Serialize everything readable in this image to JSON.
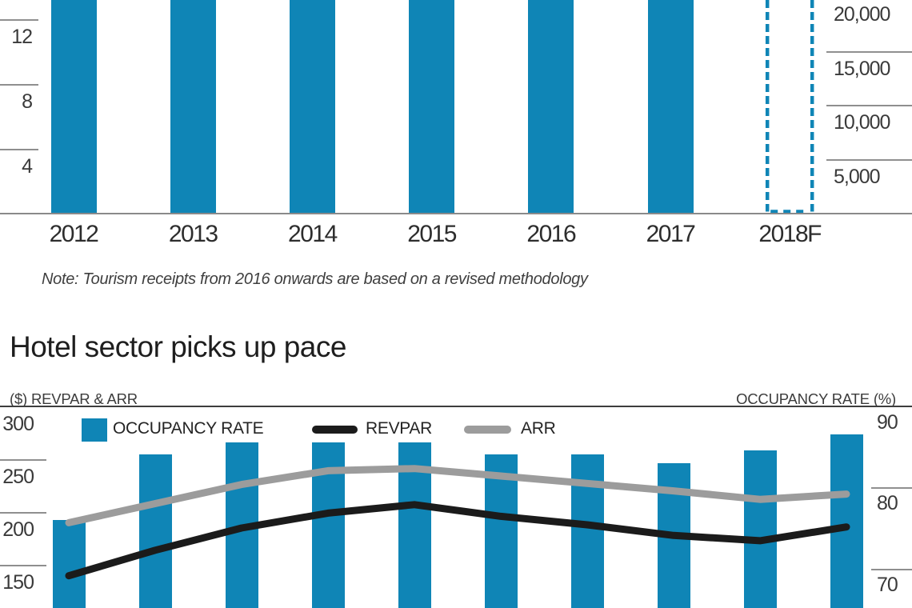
{
  "colors": {
    "bar_blue": "#0f85b6",
    "revpar_line": "#1b1b1b",
    "arr_line": "#9c9c9c",
    "axis_gray": "#8f8f8f",
    "divider_dark": "#3d3d3d"
  },
  "top_chart": {
    "note": "Note: Tourism receipts from 2016 onwards are based on a revised methodology"
  },
  "bottom_chart": {
    "title": "Hotel sector picks up pace",
    "left_axis_title": "($) REVPAR & ARR",
    "right_axis_title": "OCCUPANCY RATE (%)",
    "legend": {
      "occupancy_label": "OCCUPANCY RATE",
      "revpar_label": "REVPAR",
      "arr_label": "ARR"
    }
  },
  "chart_data": [
    {
      "type": "bar",
      "position": "top (cropped: all bars extend above the visible area)",
      "categories": [
        "2012",
        "2013",
        "2014",
        "2015",
        "2016",
        "2017",
        "2018F"
      ],
      "values_visible": false,
      "forecast_category": "2018F",
      "forecast_style": "dashed-outline",
      "left_axis": {
        "visible_ticks": [
          12,
          8,
          4
        ]
      },
      "right_axis": {
        "visible_tick_labels": [
          "20,000",
          "15,000",
          "10,000",
          "5,000"
        ],
        "visible_tick_values": [
          20000,
          15000,
          10000,
          5000
        ]
      },
      "annotation": "Note: Tourism receipts from 2016 onwards are based on a revised methodology"
    },
    {
      "type": "bar+line",
      "position": "bottom (x-axis labels cropped off)",
      "title": "Hotel sector picks up pace",
      "x_labels": null,
      "series": [
        {
          "name": "OCCUPANCY RATE",
          "type": "bar",
          "axis": "right",
          "values": [
            76,
            84,
            85.5,
            85.5,
            85.5,
            84,
            84,
            83,
            84.5,
            86.5
          ]
        },
        {
          "name": "REVPAR",
          "type": "line",
          "axis": "left",
          "values": [
            140,
            164,
            185,
            199,
            207,
            196,
            188,
            178,
            173,
            186
          ]
        },
        {
          "name": "ARR",
          "type": "line",
          "axis": "left",
          "values": [
            190,
            208,
            226,
            239,
            241,
            234,
            227,
            220,
            212,
            217
          ]
        }
      ],
      "left_axis": {
        "title": "($) REVPAR & ARR",
        "ticks": [
          300,
          250,
          200,
          150
        ],
        "unit": "$"
      },
      "right_axis": {
        "title": "OCCUPANCY RATE (%)",
        "ticks": [
          90,
          80,
          70
        ],
        "unit": "%"
      },
      "legend_position": "top",
      "grid": "left-and-right-stub-ticks-only"
    }
  ]
}
